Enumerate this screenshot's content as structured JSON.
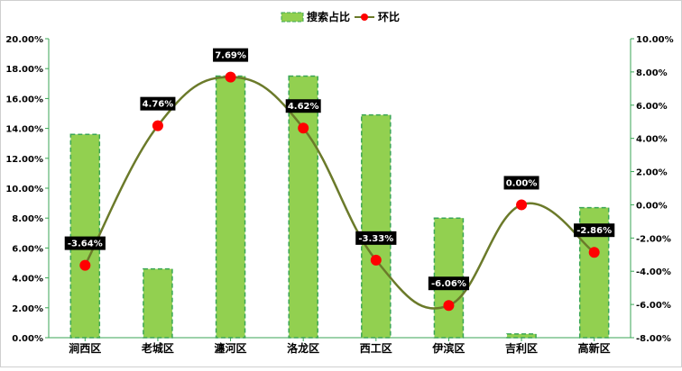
{
  "chart_data": {
    "type": "bar",
    "categories": [
      "涧西区",
      "老城区",
      "瀍河区",
      "洛龙区",
      "西工区",
      "伊滨区",
      "吉利区",
      "高新区"
    ],
    "series": [
      {
        "name": "搜索占比",
        "type": "bar",
        "axis": "left",
        "values": [
          13.6,
          4.6,
          17.5,
          17.5,
          14.9,
          8.0,
          0.25,
          8.7
        ],
        "color": "#92d050",
        "border_color": "#3aa655"
      },
      {
        "name": "环比",
        "type": "line",
        "axis": "right",
        "values": [
          -3.64,
          4.76,
          7.69,
          4.62,
          -3.33,
          -6.06,
          0.0,
          -2.86
        ],
        "labels": [
          "-3.64%",
          "4.76%",
          "7.69%",
          "4.62%",
          "-3.33%",
          "-6.06%",
          "0.00%",
          "-2.86%"
        ],
        "color": "#6b7a2a",
        "marker_color": "#ff0000"
      }
    ],
    "y_left": {
      "range": [
        0,
        20
      ],
      "ticks": [
        "0.00%",
        "2.00%",
        "4.00%",
        "6.00%",
        "8.00%",
        "10.00%",
        "12.00%",
        "14.00%",
        "16.00%",
        "18.00%",
        "20.00%"
      ]
    },
    "y_right": {
      "range": [
        -8,
        10
      ],
      "ticks": [
        "-8.00%",
        "-6.00%",
        "-4.00%",
        "-2.00%",
        "0.00%",
        "2.00%",
        "4.00%",
        "6.00%",
        "8.00%",
        "10.00%"
      ]
    },
    "legend_position": "top-center",
    "grid": false,
    "axis_color": "#3aa655"
  }
}
